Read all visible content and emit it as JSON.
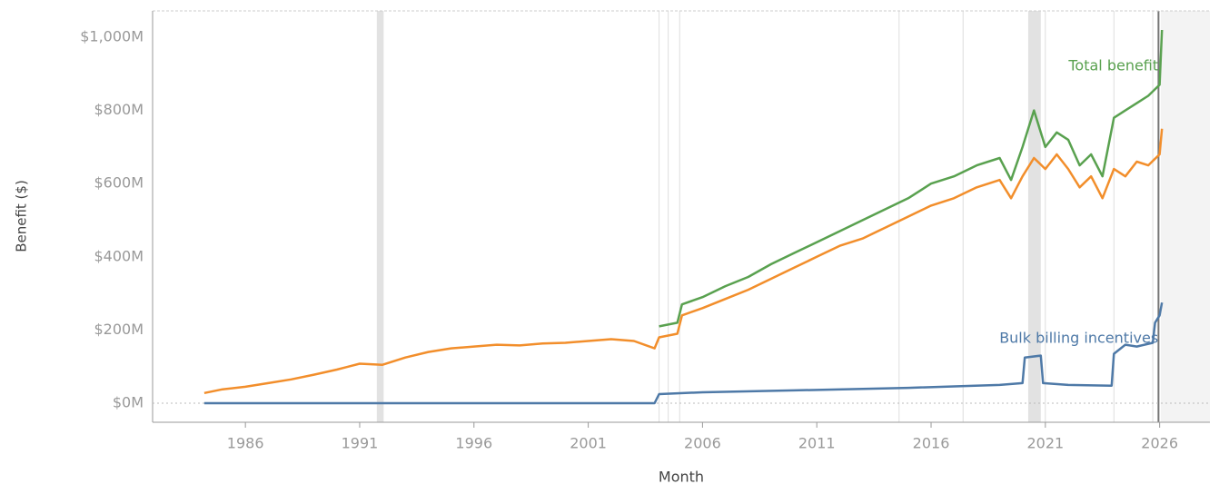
{
  "chart_data": {
    "type": "line",
    "x_label": "Month",
    "y_label": "Benefit ($)",
    "xlim": [
      1981.94,
      2028.2
    ],
    "ylim": [
      -52,
      1072
    ],
    "xticks": [
      1986,
      1991,
      1996,
      2001,
      2006,
      2011,
      2016,
      2021,
      2026
    ],
    "yticks": [
      {
        "value": 0,
        "label": "$0M"
      },
      {
        "value": 200,
        "label": "$200M"
      },
      {
        "value": 400,
        "label": "$400M"
      },
      {
        "value": 600,
        "label": "$600M"
      },
      {
        "value": 800,
        "label": "$800M"
      },
      {
        "value": 1000,
        "label": "$1,000M"
      }
    ],
    "zero_line": true,
    "reference_lines": [
      2004.1,
      2004.5,
      2005,
      2014.6,
      2017.4,
      2021,
      2024,
      2025.7
    ],
    "highlight_line": 2025.95,
    "bands": [
      [
        1991.75,
        1992.05
      ],
      [
        2020.25,
        2020.8
      ]
    ],
    "shaded_from": 2026.05,
    "series": [
      {
        "color": "#f28e2b",
        "x": [
          1984.2,
          1985,
          1986,
          1987,
          1988,
          1989,
          1990,
          1991,
          1992,
          1993,
          1994,
          1995,
          1996,
          1997,
          1998,
          1999,
          2000,
          2001,
          2002,
          2003,
          2003.9,
          2004.1,
          2004.9,
          2005.1,
          2006,
          2007,
          2008,
          2009,
          2010,
          2011,
          2012,
          2013,
          2014,
          2015,
          2016,
          2017,
          2018,
          2019,
          2019.5,
          2020,
          2020.5,
          2021,
          2021.5,
          2022,
          2022.5,
          2023,
          2023.5,
          2024,
          2024.5,
          2025,
          2025.5,
          2026,
          2026.1
        ],
        "values": [
          28,
          38,
          45,
          55,
          65,
          78,
          92,
          108,
          105,
          125,
          140,
          150,
          155,
          160,
          158,
          163,
          165,
          170,
          175,
          170,
          150,
          180,
          190,
          240,
          260,
          285,
          310,
          340,
          370,
          400,
          430,
          450,
          480,
          510,
          540,
          560,
          590,
          610,
          560,
          620,
          670,
          640,
          680,
          640,
          590,
          620,
          560,
          640,
          620,
          660,
          650,
          680,
          750
        ]
      },
      {
        "name": "Total benefit",
        "color": "#59a14f",
        "x": [
          2004.1,
          2004.9,
          2005.1,
          2006,
          2007,
          2008,
          2009,
          2010,
          2011,
          2012,
          2013,
          2014,
          2015,
          2016,
          2017,
          2018,
          2019,
          2019.5,
          2020,
          2020.5,
          2021,
          2021.5,
          2022,
          2022.5,
          2023,
          2023.5,
          2024,
          2024.5,
          2025,
          2025.5,
          2026,
          2026.1
        ],
        "values": [
          210,
          220,
          270,
          290,
          320,
          345,
          380,
          410,
          440,
          470,
          500,
          530,
          560,
          600,
          620,
          650,
          670,
          610,
          700,
          800,
          700,
          740,
          720,
          650,
          680,
          620,
          780,
          800,
          820,
          840,
          870,
          1020
        ]
      },
      {
        "name": "Bulk billing incentives",
        "color": "#4e79a7",
        "x": [
          1984.2,
          2003.9,
          2004.1,
          2006,
          2010,
          2015,
          2019,
          2020,
          2020.1,
          2020.8,
          2020.9,
          2022,
          2023.9,
          2024,
          2024.5,
          2025,
          2025.7,
          2025.8,
          2026,
          2026.1
        ],
        "values": [
          0,
          0,
          25,
          30,
          35,
          42,
          50,
          55,
          125,
          130,
          55,
          50,
          48,
          135,
          160,
          155,
          165,
          220,
          240,
          275
        ]
      }
    ]
  }
}
